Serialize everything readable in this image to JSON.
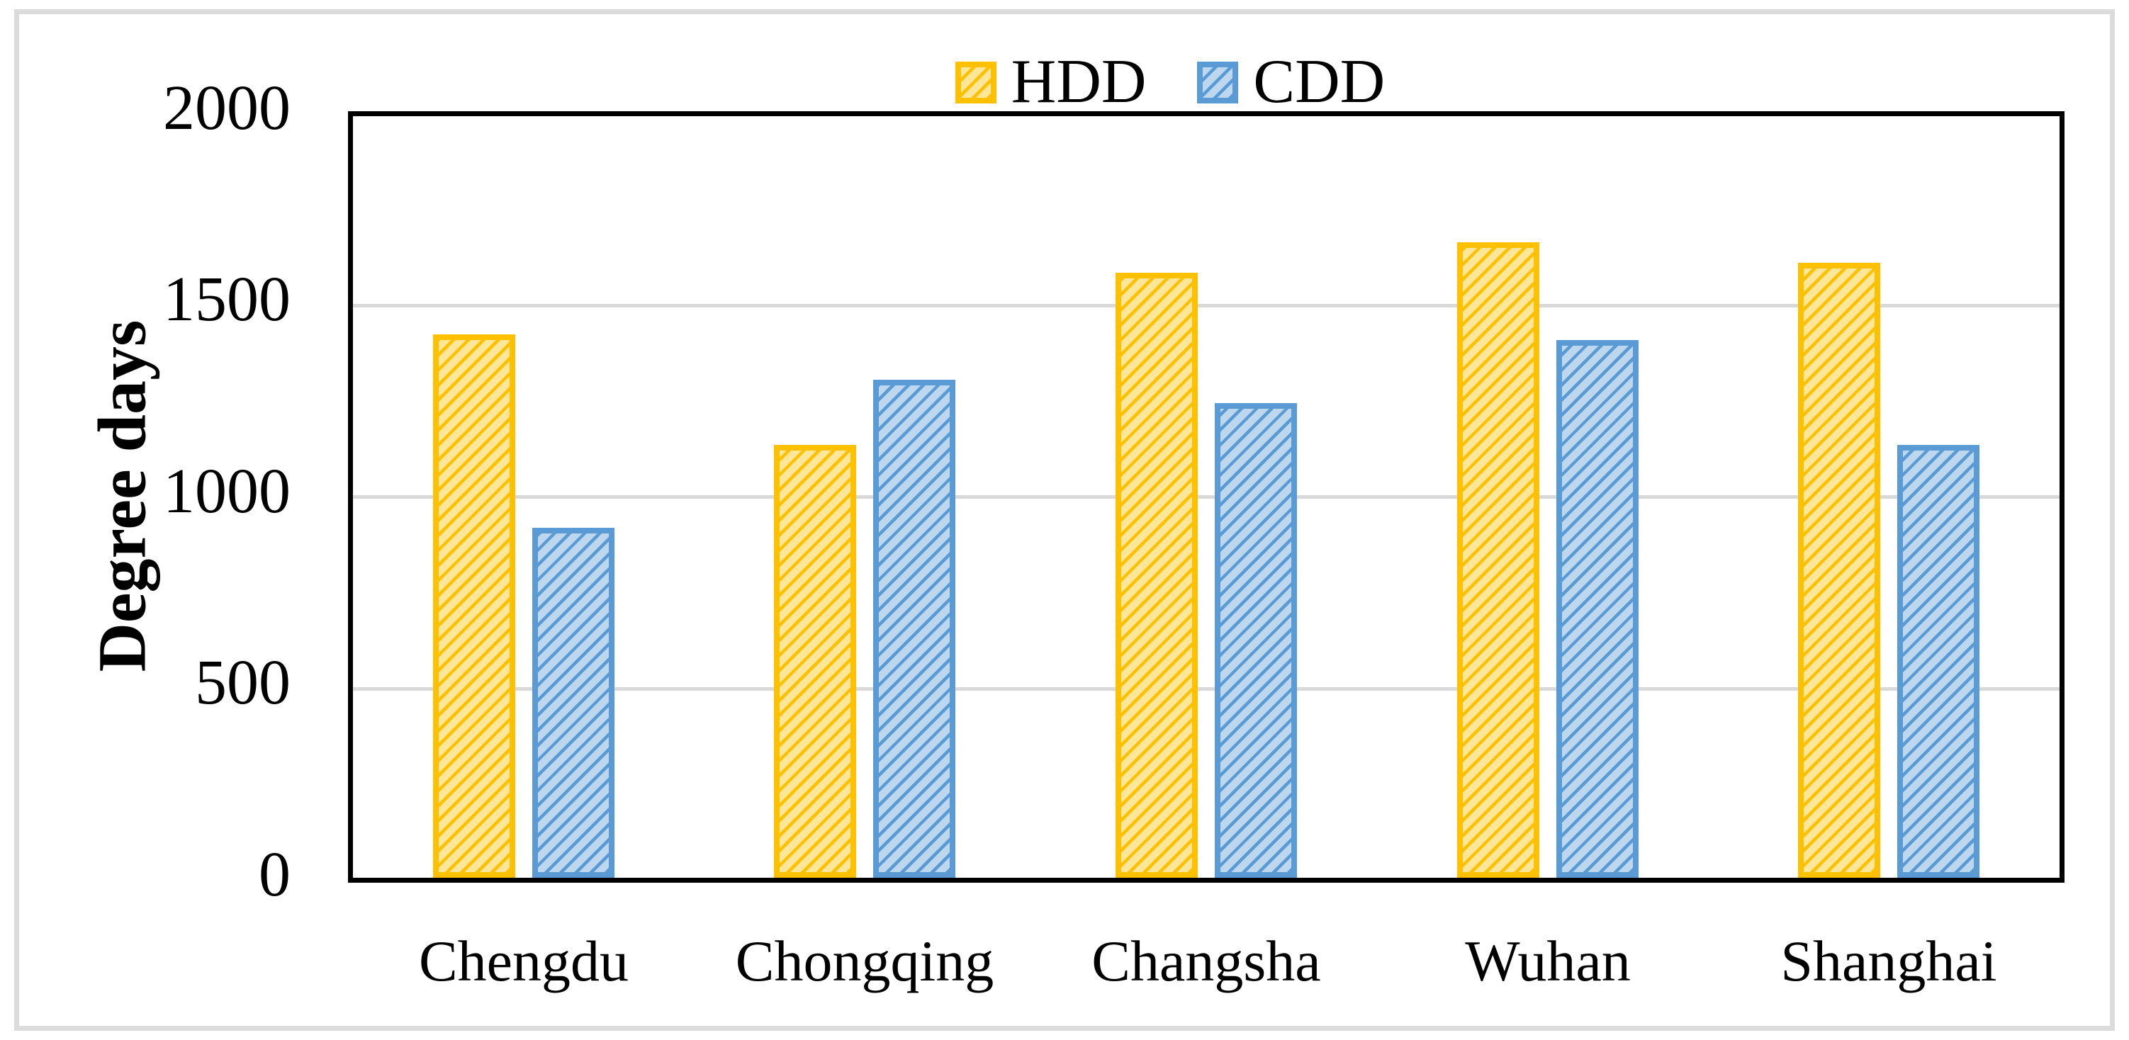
{
  "chart_data": {
    "type": "bar",
    "title": "",
    "xlabel": "",
    "ylabel": "Degree days",
    "ylim": [
      0,
      2000
    ],
    "yticks": [
      2000,
      1500,
      1000,
      500,
      0
    ],
    "gridlines": [
      1500,
      1000,
      500
    ],
    "grid": true,
    "legend_position": "top-center",
    "categories": [
      "Chengdu",
      "Chongqing",
      "Changsha",
      "Wuhan",
      "Shanghai"
    ],
    "series": [
      {
        "name": "HDD",
        "values": [
          1425,
          1135,
          1585,
          1665,
          1610
        ],
        "border_color": "#FFC000",
        "fill_color": "#FFE699",
        "hatch": "diagonal-up"
      },
      {
        "name": "CDD",
        "values": [
          920,
          1305,
          1245,
          1410,
          1135
        ],
        "border_color": "#5B9BD5",
        "fill_color": "#BDD7EE",
        "hatch": "diagonal-up"
      }
    ]
  },
  "colors": {
    "axis": "#000000",
    "gridline": "#D9D9D9",
    "figure_border": "#DBDBDB",
    "text": "#000000"
  }
}
